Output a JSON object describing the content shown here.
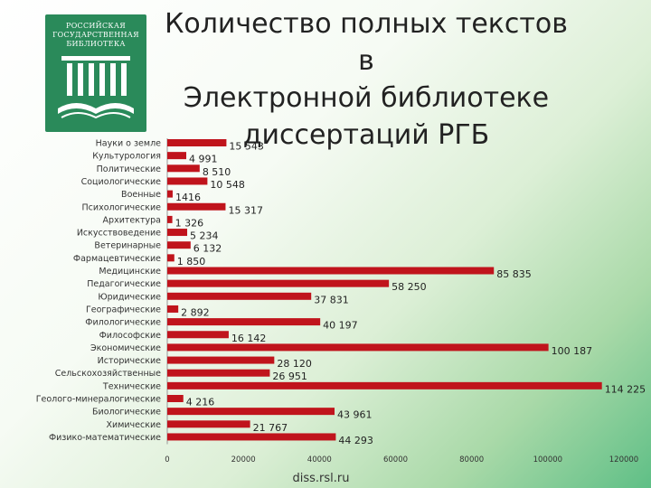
{
  "header": {
    "title_line1": "Количество полных текстов в",
    "title_line2": "Электронной библиотеке",
    "title_line3": "диссертаций РГБ"
  },
  "logo": {
    "line1": "РОССИЙСКАЯ",
    "line2": "ГОСУДАРСТВЕННАЯ",
    "line3": "БИБЛИОТЕКА"
  },
  "footer": {
    "url": "diss.rsl.ru"
  },
  "colors": {
    "bar": "#c0141c",
    "background_accent": "#5fbf86"
  },
  "chart_data": {
    "type": "bar",
    "orientation": "horizontal",
    "title": "Количество полных текстов в Электронной библиотеке диссертаций РГБ",
    "categories": [
      "Науки о земле",
      "Культурология",
      "Политические",
      "Социологические",
      "Военные",
      "Психологические",
      "Архитектура",
      "Искусствоведение",
      "Ветеринарные",
      "Фармацевтические",
      "Медицинские",
      "Педагогические",
      "Юридические",
      "Географические",
      "Филологические",
      "Философские",
      "Экономические",
      "Исторические",
      "Сельскохозяйственные",
      "Технические",
      "Геолого-минералогические",
      "Биологические",
      "Химические",
      "Физико-математические"
    ],
    "values": [
      15543,
      4991,
      8510,
      10548,
      1416,
      15317,
      1326,
      5234,
      6132,
      1850,
      85835,
      58250,
      37831,
      2892,
      40197,
      16142,
      100187,
      28120,
      26951,
      114225,
      4216,
      43961,
      21767,
      44293
    ],
    "value_labels": [
      "15 543",
      "4 991",
      "8 510",
      "10 548",
      "1416",
      "15 317",
      "1 326",
      "5 234",
      "6 132",
      "1 850",
      "85 835",
      "58 250",
      "37 831",
      "2 892",
      "40 197",
      "16 142",
      "100 187",
      "28 120",
      "26 951",
      "114 225",
      "4 216",
      "43 961",
      "21 767",
      "44 293"
    ],
    "xlim": [
      0,
      120000
    ],
    "xticks": [
      "0",
      "20000",
      "40000",
      "60000",
      "80000",
      "100000",
      "120000"
    ],
    "xlabel": "",
    "ylabel": "",
    "grid": false,
    "legend": "none"
  }
}
